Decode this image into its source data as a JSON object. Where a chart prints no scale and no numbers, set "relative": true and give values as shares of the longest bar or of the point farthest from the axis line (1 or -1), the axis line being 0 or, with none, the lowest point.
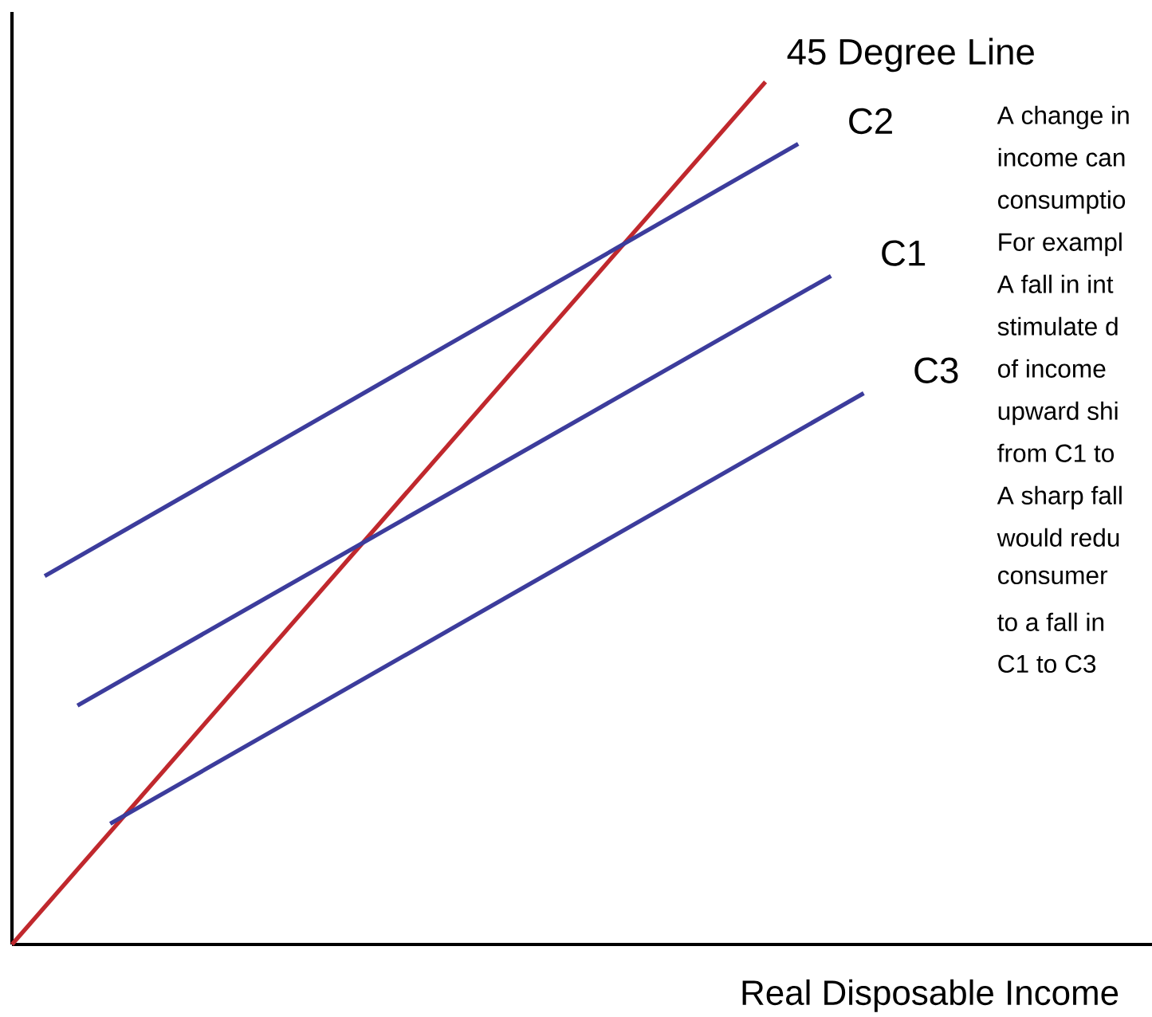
{
  "chart_data": {
    "type": "line",
    "relative": true,
    "xlabel": "Real Disposable Income",
    "marker": "none",
    "line_style": "solid",
    "categories": [
      null,
      null,
      null,
      null,
      null,
      null,
      null,
      null,
      null,
      null,
      null,
      null,
      null,
      null,
      null,
      null,
      null,
      null,
      null,
      null,
      null,
      null,
      null,
      null,
      null,
      null,
      null
    ],
    "series": [
      {
        "name": "45 Degree Line",
        "color": "#c0282d",
        "values": [
          0,
          null,
          null,
          null,
          null,
          null,
          null,
          null,
          null,
          null,
          null,
          null,
          null,
          null,
          null,
          null,
          null,
          null,
          null,
          null,
          null,
          null,
          null,
          1,
          null,
          null,
          null
        ]
      },
      {
        "name": "C2",
        "color": "#3c3c9c",
        "values": [
          null,
          0.427,
          null,
          null,
          null,
          null,
          null,
          null,
          null,
          null,
          null,
          null,
          null,
          null,
          null,
          null,
          null,
          null,
          null,
          null,
          null,
          null,
          null,
          null,
          0.928,
          null,
          null
        ]
      },
      {
        "name": "C1",
        "color": "#3c3c9c",
        "values": [
          null,
          null,
          0.277,
          null,
          null,
          null,
          null,
          null,
          null,
          null,
          null,
          null,
          null,
          null,
          null,
          null,
          null,
          null,
          null,
          null,
          null,
          null,
          null,
          null,
          null,
          0.775,
          null
        ]
      },
      {
        "name": "C3",
        "color": "#3c3c9c",
        "values": [
          null,
          null,
          null,
          0.14,
          null,
          null,
          null,
          null,
          null,
          null,
          null,
          null,
          null,
          null,
          null,
          null,
          null,
          null,
          null,
          null,
          null,
          null,
          null,
          null,
          null,
          null,
          0.639
        ]
      }
    ],
    "annotations": [
      "A change in",
      "income can",
      "consumptio",
      "For exampl",
      "A fall in int",
      "stimulate d",
      "of income",
      "upward shi",
      "from C1 to",
      "A sharp fall",
      "would redu",
      "consumer",
      "to a fall in",
      "C1 to C3"
    ]
  }
}
